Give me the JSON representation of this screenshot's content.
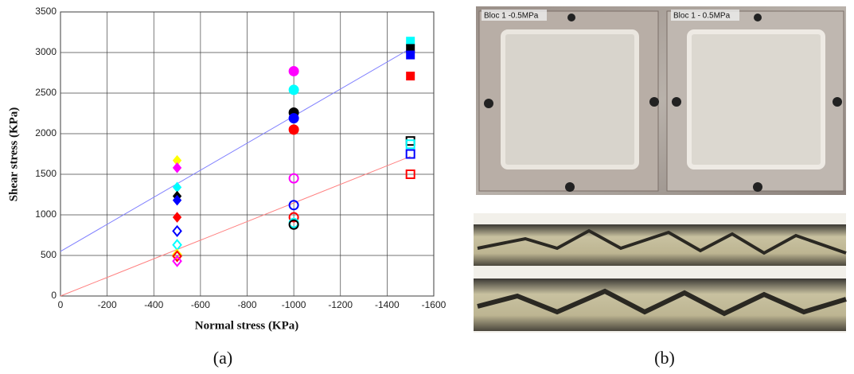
{
  "chart_data": {
    "type": "scatter",
    "xlabel": "Normal stress (KPa)",
    "ylabel": "Shear stress (KPa)",
    "xlim": [
      0,
      -1600
    ],
    "ylim": [
      0,
      3500
    ],
    "xticks": [
      0,
      -200,
      -400,
      -600,
      -800,
      -1000,
      -1200,
      -1400,
      -1600
    ],
    "yticks": [
      0,
      500,
      1000,
      1500,
      2000,
      2500,
      3000,
      3500
    ],
    "grid": true,
    "series": [
      {
        "marker": "diamond",
        "filled": true,
        "x": [
          -500,
          -500,
          -500,
          -500,
          -500,
          -500
        ],
        "values": [
          1670,
          1580,
          1340,
          1230,
          1180,
          970
        ],
        "colors": [
          "#ffff00",
          "#ff00ff",
          "#00ffff",
          "#000000",
          "#0000ff",
          "#ff0000"
        ]
      },
      {
        "marker": "diamond",
        "filled": false,
        "x": [
          -500,
          -500,
          -500,
          -500,
          -500
        ],
        "values": [
          800,
          630,
          510,
          490,
          430
        ],
        "colors": [
          "#0000ff",
          "#00ffff",
          "#ffff00",
          "#ff0000",
          "#ff00ff"
        ]
      },
      {
        "marker": "circle",
        "filled": true,
        "x": [
          -1000,
          -1000,
          -1000,
          -1000,
          -1000
        ],
        "values": [
          2770,
          2540,
          2260,
          2190,
          2050
        ],
        "colors": [
          "#ff00ff",
          "#00ffff",
          "#000000",
          "#0000ff",
          "#ff0000"
        ]
      },
      {
        "marker": "circle",
        "filled": false,
        "x": [
          -1000,
          -1000,
          -1000,
          -1000,
          -1000
        ],
        "values": [
          1450,
          1120,
          970,
          900,
          880
        ],
        "colors": [
          "#ff00ff",
          "#0000ff",
          "#ff0000",
          "#00ffff",
          "#000000"
        ]
      },
      {
        "marker": "square",
        "filled": true,
        "x": [
          -1500,
          -1500,
          -1500,
          -1500
        ],
        "values": [
          3140,
          3050,
          2970,
          2710
        ],
        "colors": [
          "#00ffff",
          "#000000",
          "#0000ff",
          "#ff0000"
        ]
      },
      {
        "marker": "square",
        "filled": false,
        "x": [
          -1500,
          -1500,
          -1500,
          -1500
        ],
        "values": [
          1910,
          1870,
          1750,
          1500
        ],
        "colors": [
          "#000000",
          "#00ffff",
          "#0000ff",
          "#ff0000"
        ]
      }
    ],
    "lines": [
      {
        "color": "#8080ff",
        "x": [
          0,
          -1500
        ],
        "values": [
          550,
          3050
        ]
      },
      {
        "color": "#ff8080",
        "x": [
          0,
          -1500
        ],
        "values": [
          0,
          1720
        ]
      }
    ]
  },
  "photos": {
    "labels": [
      "Bloc 1 -0.5MPa",
      "Bloc 1 - 0.5MPa"
    ]
  },
  "panel_labels": [
    "(a)",
    "(b)"
  ]
}
